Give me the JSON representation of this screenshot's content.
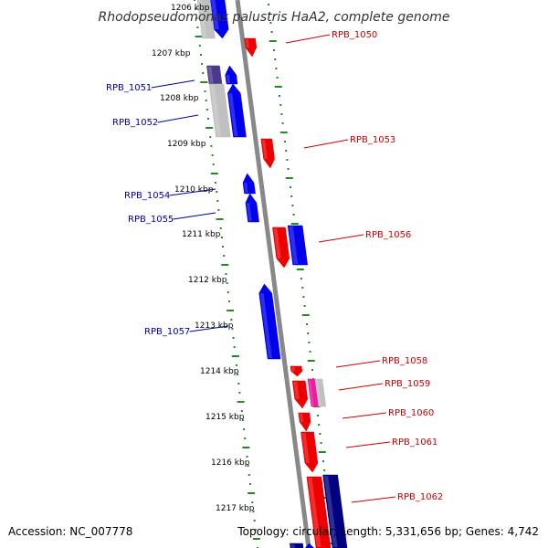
{
  "title": "Rhodopseudomonas palustris HaA2, complete genome",
  "footer": {
    "accession": "Accession: NC_007778",
    "summary": "Topology: circular; Length: 5,331,656 bp; Genes: 4,742"
  },
  "colors": {
    "backbone": "#888888",
    "forward_strand": "#0000ee",
    "reverse_strand": "#ee0000",
    "navy_gene": "#000080",
    "purple_gene": "#4b3a8c",
    "gray_gene": "#c0c0c0",
    "pink_gene": "#ee1aa0",
    "tick": "#228b22",
    "left_label": "#00009c",
    "right_label": "#cc0000"
  },
  "kbp_labels": [
    "1206 kbp",
    "1207 kbp",
    "1208 kbp",
    "1209 kbp",
    "1210 kbp",
    "1211 kbp",
    "1212 kbp",
    "1213 kbp",
    "1214 kbp",
    "1215 kbp",
    "1216 kbp",
    "1217 kbp"
  ],
  "left_genes": [
    "RPB_1051",
    "RPB_1052",
    "RPB_1054",
    "RPB_1055",
    "RPB_1057"
  ],
  "right_genes": [
    "RPB_1050",
    "RPB_1053",
    "RPB_1056",
    "RPB_1058",
    "RPB_1059",
    "RPB_1060",
    "RPB_1061",
    "RPB_1062"
  ]
}
